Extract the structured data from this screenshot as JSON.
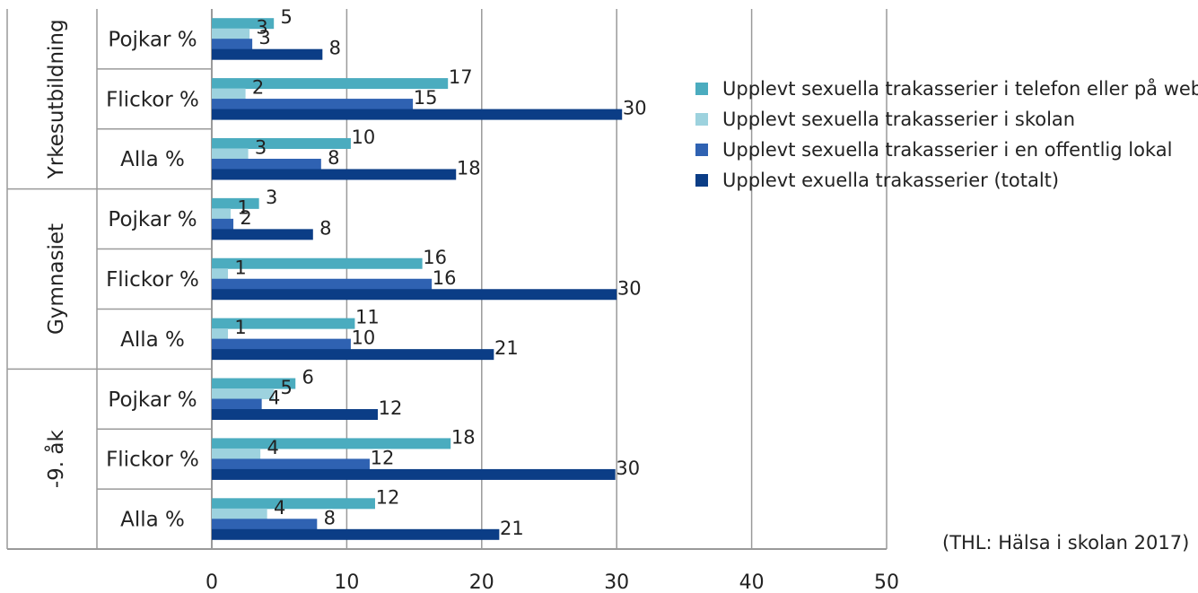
{
  "chart_data": {
    "type": "bar",
    "orientation": "horizontal",
    "title": "",
    "xlabel": "",
    "ylabel": "",
    "xlim": [
      0,
      50
    ],
    "x_ticks": [
      "0",
      "10",
      "20",
      "30",
      "40",
      "50"
    ],
    "grid": "vertical",
    "legend_position": "right",
    "groups": [
      {
        "name": "Yrkesutbildning",
        "categories": [
          "Pojkar %",
          "Flickor %",
          "Alla %"
        ]
      },
      {
        "name": "Gymnasiet",
        "categories": [
          "Pojkar %",
          "Flickor %",
          "Alla %"
        ]
      },
      {
        "name": "-9. åk",
        "categories": [
          "Pojkar %",
          "Flickor %",
          "Alla %"
        ]
      }
    ],
    "series": [
      {
        "name": "Upplevt sexuella trakasserier i telefon eller på webben",
        "color": "#4BACBF",
        "values": [
          [
            4.6,
            17.5,
            10.3
          ],
          [
            3.5,
            15.6,
            10.6
          ],
          [
            6.2,
            17.7,
            12.1
          ]
        ],
        "labels": [
          [
            "5",
            "17",
            "10"
          ],
          [
            "3",
            "16",
            "11"
          ],
          [
            "6",
            "18",
            "12"
          ]
        ]
      },
      {
        "name": "Upplevt sexuella trakasserier i skolan",
        "color": "#9DD2DE",
        "values": [
          [
            2.8,
            2.5,
            2.7
          ],
          [
            1.4,
            1.2,
            1.2
          ],
          [
            4.6,
            3.6,
            4.1
          ]
        ],
        "labels": [
          [
            "3",
            "2",
            "3"
          ],
          [
            "1",
            "1",
            "1"
          ],
          [
            "5",
            "4",
            "4"
          ]
        ]
      },
      {
        "name": "Upplevt sexuella trakasserier i en offentlig lokal",
        "color": "#2F62B2",
        "values": [
          [
            3.0,
            14.9,
            8.1
          ],
          [
            1.6,
            16.3,
            10.3
          ],
          [
            3.7,
            11.7,
            7.8
          ]
        ],
        "labels": [
          [
            "3",
            "15",
            "8"
          ],
          [
            "2",
            "16",
            "10"
          ],
          [
            "4",
            "12",
            "8"
          ]
        ]
      },
      {
        "name": "Upplevt exuella trakasserier (totalt)",
        "color": "#0B3D86",
        "values": [
          [
            8.2,
            30.4,
            18.1
          ],
          [
            7.5,
            30.0,
            20.9
          ],
          [
            12.3,
            29.9,
            21.3
          ]
        ],
        "labels": [
          [
            "8",
            "30",
            "18"
          ],
          [
            "8",
            "30",
            "21"
          ],
          [
            "12",
            "30",
            "21"
          ]
        ]
      }
    ],
    "source_note": "(THL: Hälsa i skolan 2017)"
  }
}
